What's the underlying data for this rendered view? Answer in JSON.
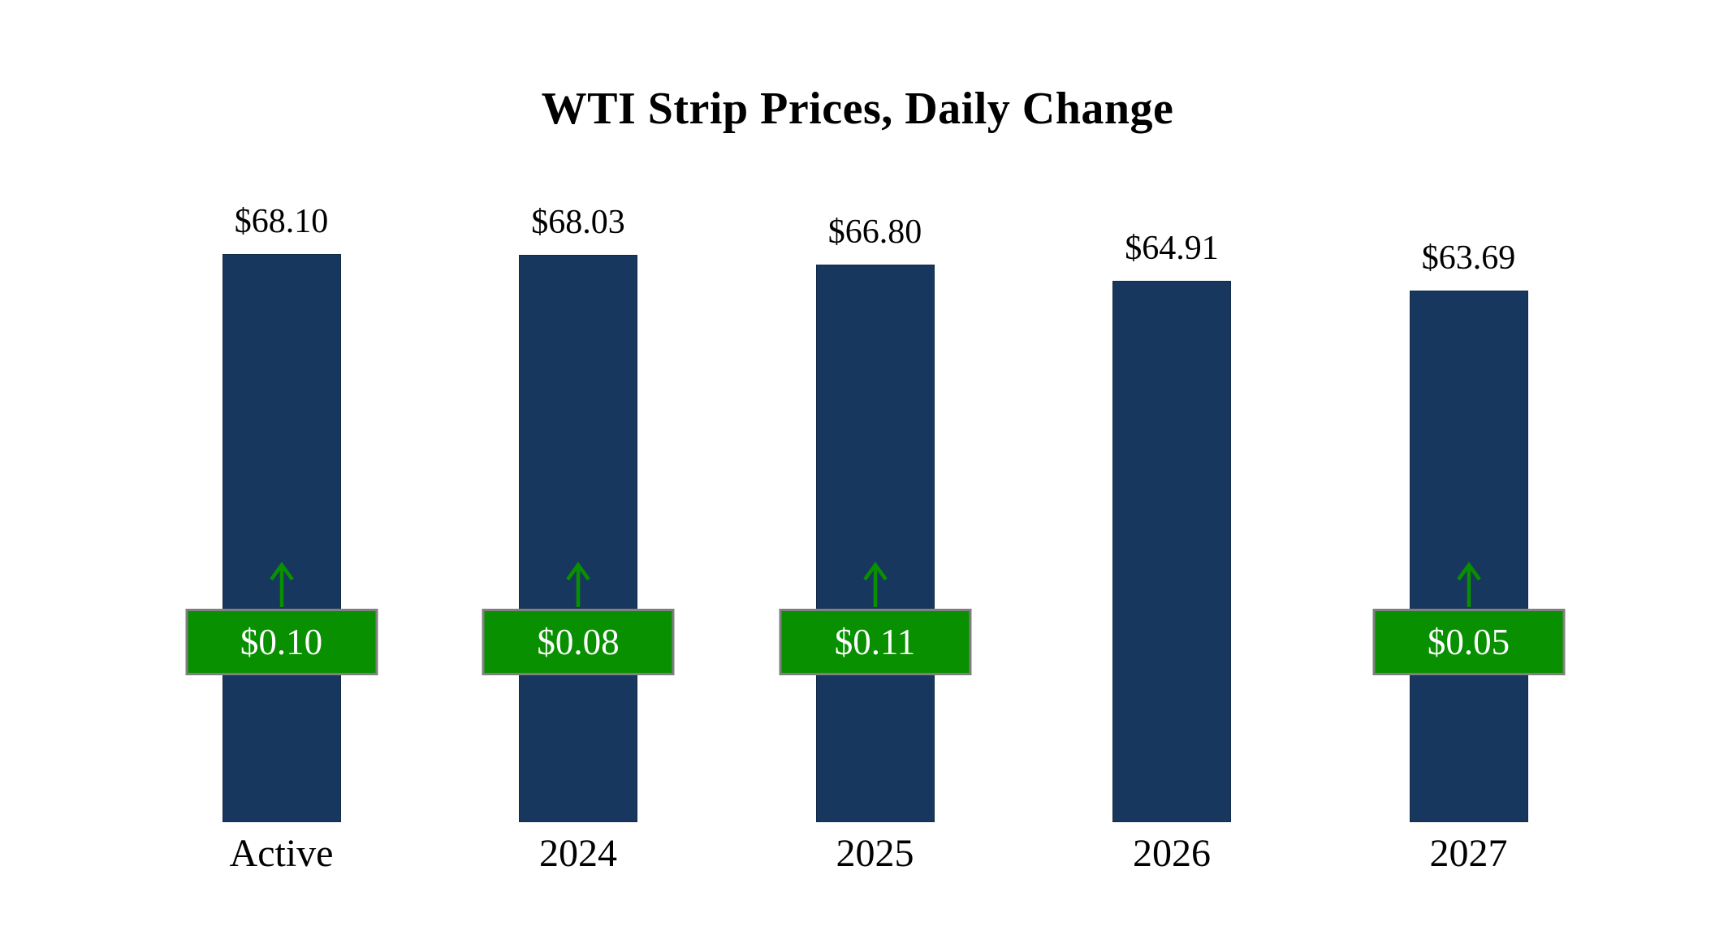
{
  "title": "WTI Strip Prices, Daily Change",
  "colors": {
    "background": "#FFFFFF",
    "text": "#000000",
    "bar": "#17375E",
    "bar_border": "#122B49",
    "badge_bg": "#089000",
    "badge_border": "#808080",
    "badge_text": "#FFFFFF",
    "arrow": "#089000"
  },
  "chart_data": {
    "type": "bar",
    "title": "WTI Strip Prices, Daily Change",
    "categories": [
      "Active",
      "2024",
      "2025",
      "2026",
      "2027"
    ],
    "values": [
      68.1,
      68.03,
      66.8,
      64.91,
      63.69
    ],
    "value_labels": [
      "$68.10",
      "$68.03",
      "$66.80",
      "$64.91",
      "$63.69"
    ],
    "daily_changes": [
      0.1,
      0.08,
      0.11,
      null,
      0.05
    ],
    "change_labels": [
      "$0.10",
      "$0.08",
      "$0.11",
      null,
      "$0.05"
    ],
    "change_directions": [
      "up",
      "up",
      "up",
      null,
      "up"
    ],
    "xlabel": "",
    "ylabel": "",
    "ylim": [
      0,
      70
    ],
    "grid": false,
    "legend": false
  }
}
